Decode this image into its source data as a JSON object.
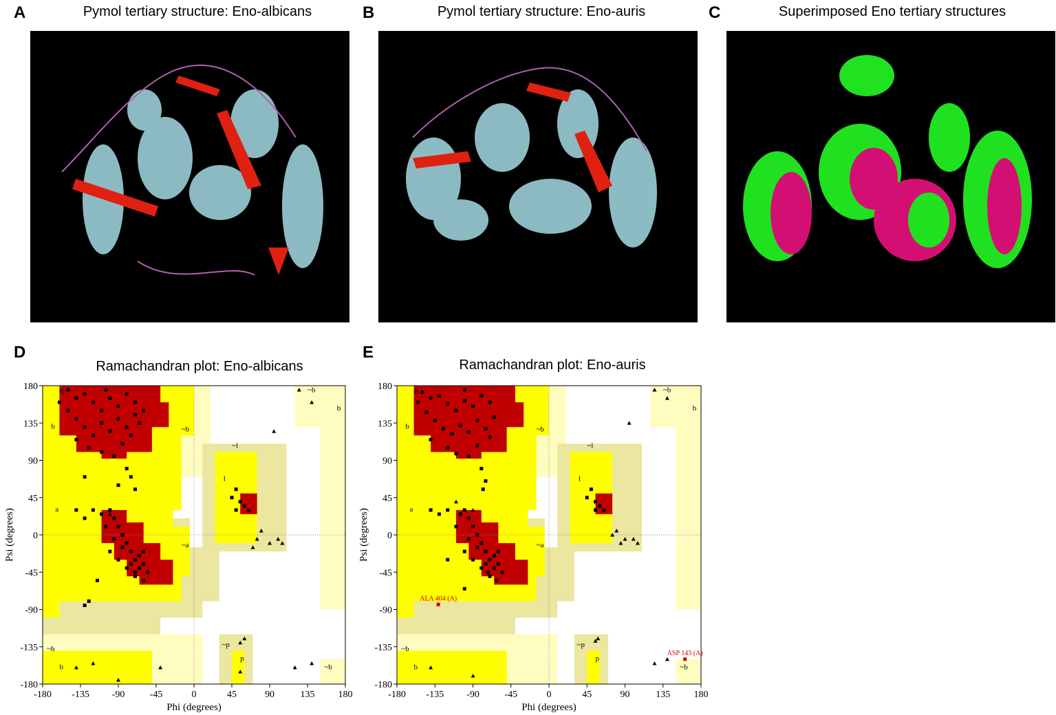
{
  "panels": [
    {
      "letter": "A",
      "title": "Pymol tertiary structure: Eno-albicans"
    },
    {
      "letter": "B",
      "title": "Pymol tertiary structure: Eno-auris"
    },
    {
      "letter": "C",
      "title": "Superimposed Eno tertiary structures"
    }
  ],
  "chart_data": [
    {
      "type": "scatter",
      "letter": "D",
      "title": "Ramachandran plot: Eno-albicans",
      "xlabel": "Phi (degrees)",
      "ylabel": "Psi (degrees)",
      "xlim": [
        -180,
        180
      ],
      "ylim": [
        -180,
        180
      ],
      "xticks": [
        -180,
        -135,
        -90,
        -45,
        0,
        45,
        90,
        135,
        180
      ],
      "yticks": [
        -180,
        -135,
        -90,
        -45,
        0,
        45,
        90,
        135,
        180
      ],
      "region_labels": [
        "B",
        "b",
        "~b",
        "a",
        "~a",
        "~l",
        "l",
        "~b",
        "b",
        "~b",
        "b",
        "~p",
        "p",
        "~b"
      ],
      "series": [
        {
          "marker": "square",
          "color": "#000000",
          "x": [
            -150,
            -140,
            -130,
            -120,
            -110,
            -100,
            -90,
            -80,
            -70,
            -150,
            -140,
            -130,
            -120,
            -110,
            -100,
            -90,
            -80,
            -70,
            -60,
            -140,
            -125,
            -110,
            -95,
            -85,
            -75,
            -65,
            -160,
            -105,
            -130,
            -80,
            -75,
            -70,
            -90,
            -120,
            -110,
            -100,
            -95,
            -90,
            -85,
            -80,
            -75,
            -70,
            -65,
            -60,
            -55,
            -70,
            -80,
            -90,
            -100,
            -65,
            -60,
            -75,
            -60,
            -70,
            -85,
            -95,
            -105,
            -130,
            -140,
            -115,
            -125,
            -130,
            50,
            45,
            55,
            60,
            50,
            65
          ],
          "y": [
            175,
            165,
            170,
            160,
            150,
            165,
            155,
            170,
            160,
            150,
            140,
            130,
            120,
            135,
            125,
            140,
            130,
            145,
            150,
            115,
            105,
            100,
            95,
            110,
            120,
            135,
            160,
            175,
            70,
            80,
            70,
            55,
            60,
            30,
            25,
            30,
            20,
            10,
            0,
            -10,
            -20,
            -30,
            -40,
            -35,
            -45,
            -50,
            -40,
            -30,
            -20,
            -25,
            -20,
            -35,
            -55,
            -45,
            -15,
            -5,
            10,
            20,
            30,
            -55,
            -80,
            -85,
            55,
            45,
            40,
            35,
            30,
            30
          ]
        },
        {
          "marker": "triangle",
          "color": "#000000",
          "x": [
            -100,
            -120,
            -140,
            -90,
            60,
            55,
            90,
            80,
            70,
            75,
            100,
            105,
            95,
            125,
            140,
            120,
            140,
            -40,
            55
          ],
          "y": [
            25,
            -155,
            -160,
            -175,
            -125,
            -130,
            -10,
            5,
            -15,
            -5,
            -5,
            -10,
            125,
            175,
            160,
            -160,
            -155,
            -160,
            -165
          ]
        }
      ]
    },
    {
      "type": "scatter",
      "letter": "E",
      "title": "Ramachandran plot: Eno-auris",
      "xlabel": "Phi (degrees)",
      "ylabel": "Psi (degrees)",
      "xlim": [
        -180,
        180
      ],
      "ylim": [
        -180,
        180
      ],
      "xticks": [
        -180,
        -135,
        -90,
        -45,
        0,
        45,
        90,
        135,
        180
      ],
      "yticks": [
        -180,
        -135,
        -90,
        -45,
        0,
        45,
        90,
        135,
        180
      ],
      "region_labels": [
        "B",
        "b",
        "~b",
        "a",
        "~a",
        "~l",
        "l",
        "~b",
        "b",
        "~b",
        "b",
        "~p",
        "p",
        "~b"
      ],
      "series": [
        {
          "marker": "square",
          "color": "#000000",
          "x": [
            -150,
            -140,
            -130,
            -120,
            -110,
            -100,
            -90,
            -80,
            -70,
            -145,
            -135,
            -125,
            -115,
            -105,
            -95,
            -85,
            -75,
            -65,
            -140,
            -120,
            -110,
            -95,
            -85,
            -70,
            -155,
            -100,
            -80,
            -75,
            -78,
            -120,
            -105,
            -100,
            -95,
            -90,
            -85,
            -80,
            -75,
            -70,
            -65,
            -60,
            -55,
            -70,
            -80,
            -90,
            -100,
            -65,
            -60,
            -75,
            -62,
            -72,
            -85,
            -95,
            -110,
            -140,
            -130,
            -120,
            -100,
            50,
            45,
            55,
            60,
            55,
            65
          ],
          "y": [
            172,
            165,
            168,
            158,
            150,
            162,
            155,
            168,
            160,
            148,
            138,
            128,
            122,
            132,
            124,
            138,
            128,
            142,
            115,
            105,
            98,
            95,
            108,
            118,
            160,
            175,
            80,
            65,
            55,
            30,
            25,
            30,
            20,
            10,
            0,
            -10,
            -20,
            -30,
            -40,
            -35,
            -45,
            -50,
            -40,
            -30,
            -20,
            -25,
            -20,
            -35,
            -55,
            -45,
            -15,
            -5,
            10,
            30,
            25,
            -30,
            -65,
            55,
            45,
            40,
            35,
            30,
            30
          ]
        },
        {
          "marker": "triangle",
          "color": "#000000",
          "x": [
            -110,
            -140,
            -90,
            55,
            58,
            85,
            80,
            75,
            90,
            100,
            105,
            95,
            125,
            140,
            125,
            140,
            -90
          ],
          "y": [
            40,
            -160,
            -170,
            -128,
            -125,
            -10,
            5,
            0,
            -5,
            -5,
            -10,
            135,
            175,
            165,
            -155,
            -150,
            30
          ]
        },
        {
          "marker": "square",
          "color": "#cc0000",
          "x": [
            -131,
            161
          ],
          "y": [
            -84,
            -150
          ],
          "labels": [
            "ALA 404 (A)",
            "ASP 143 (A)"
          ]
        }
      ]
    }
  ]
}
